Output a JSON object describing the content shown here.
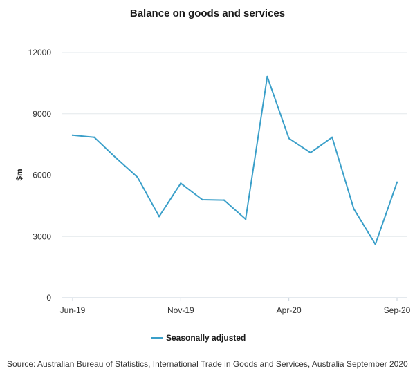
{
  "chart_data": {
    "type": "line",
    "title": "Balance on goods and services",
    "xlabel": "",
    "ylabel": "$m",
    "ylim": [
      0,
      12000
    ],
    "yticks": [
      0,
      3000,
      6000,
      9000,
      12000
    ],
    "x": [
      "Jun-19",
      "Jul-19",
      "Aug-19",
      "Sep-19",
      "Oct-19",
      "Nov-19",
      "Dec-19",
      "Jan-20",
      "Feb-20",
      "Mar-20",
      "Apr-20",
      "May-20",
      "Jun-20",
      "Jul-20",
      "Aug-20",
      "Sep-20"
    ],
    "xtick_labels": [
      "Jun-19",
      "Nov-19",
      "Apr-20",
      "Sep-20"
    ],
    "series": [
      {
        "name": "Seasonally adjusted",
        "color": "#3a9fc9",
        "values": [
          7950,
          7850,
          6850,
          5900,
          3980,
          5600,
          4800,
          4780,
          3850,
          10820,
          7800,
          7100,
          7850,
          4350,
          2620,
          5650
        ]
      }
    ],
    "grid": true,
    "legend": "bottom-center"
  },
  "source": "Source: Australian Bureau of Statistics, International Trade in Goods and Services, Australia September 2020"
}
